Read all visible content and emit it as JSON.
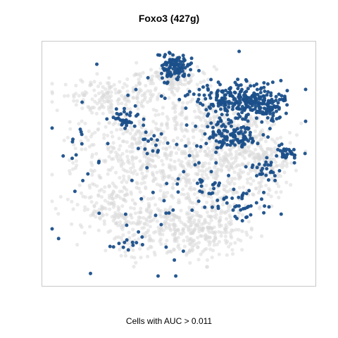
{
  "chart_data": {
    "type": "scatter",
    "title": "Foxo3 (427g)",
    "caption": "Cells with AUC > 0.011",
    "xlabel": "",
    "ylabel": "",
    "xlim": [
      0,
      100
    ],
    "ylim": [
      0,
      100
    ],
    "axes_visible": false,
    "grid": false,
    "legend": "none",
    "colors": {
      "inactive": "#d9d9d9",
      "active": "#1a4f8a",
      "active_dark": "#0e3a6b",
      "frame": "#c8c8c8"
    },
    "series": [
      {
        "name": "",
        "role": "background-cells",
        "clusters": [
          {
            "cx": 24,
            "cy": 80,
            "sx": 10,
            "sy": 4,
            "n": 170
          },
          {
            "cx": 47,
            "cy": 88,
            "sx": 7,
            "sy": 3.5,
            "n": 120
          },
          {
            "cx": 58,
            "cy": 72,
            "sx": 8,
            "sy": 5,
            "n": 110
          },
          {
            "cx": 33,
            "cy": 55,
            "sx": 13,
            "sy": 12,
            "n": 380
          },
          {
            "cx": 62,
            "cy": 45,
            "sx": 12,
            "sy": 12,
            "n": 340
          },
          {
            "cx": 74,
            "cy": 55,
            "sx": 10,
            "sy": 8,
            "n": 200
          },
          {
            "cx": 42,
            "cy": 22,
            "sx": 11,
            "sy": 7,
            "n": 240
          },
          {
            "cx": 62,
            "cy": 20,
            "sx": 9,
            "sy": 6,
            "n": 170
          },
          {
            "cx": 21,
            "cy": 30,
            "sx": 7,
            "sy": 6,
            "n": 110
          },
          {
            "cx": 86,
            "cy": 48,
            "sx": 5,
            "sy": 6,
            "n": 70
          },
          {
            "cx": 79,
            "cy": 65,
            "sx": 5,
            "sy": 5,
            "n": 60
          }
        ]
      },
      {
        "name": "",
        "role": "active-cells",
        "clusters": [
          {
            "cx": 48,
            "cy": 93,
            "sx": 3,
            "sy": 2.8,
            "n": 110
          },
          {
            "cx": 76,
            "cy": 78,
            "sx": 9,
            "sy": 4,
            "n": 260
          },
          {
            "cx": 85,
            "cy": 74,
            "sx": 3,
            "sy": 2.5,
            "n": 50
          },
          {
            "cx": 74,
            "cy": 63,
            "sx": 4,
            "sy": 3,
            "n": 70
          },
          {
            "cx": 67,
            "cy": 61,
            "sx": 3,
            "sy": 2.5,
            "n": 35
          },
          {
            "cx": 28,
            "cy": 70,
            "sx": 3,
            "sy": 2.5,
            "n": 35
          },
          {
            "cx": 93,
            "cy": 55,
            "sx": 3,
            "sy": 2,
            "n": 30
          },
          {
            "cx": 85,
            "cy": 47,
            "sx": 3,
            "sy": 3,
            "n": 25
          },
          {
            "cx": 76,
            "cy": 33,
            "sx": 5,
            "sy": 4,
            "n": 35
          },
          {
            "cx": 65,
            "cy": 40,
            "sx": 6,
            "sy": 6,
            "n": 30
          },
          {
            "cx": 30,
            "cy": 15,
            "sx": 3,
            "sy": 2,
            "n": 12
          },
          {
            "cx": 58,
            "cy": 75,
            "sx": 12,
            "sy": 12,
            "n": 30
          },
          {
            "cx": 30,
            "cy": 40,
            "sx": 16,
            "sy": 18,
            "n": 40
          },
          {
            "cx": 12,
            "cy": 63,
            "sx": 3,
            "sy": 3,
            "n": 6
          },
          {
            "cx": 42,
            "cy": 22,
            "sx": 6,
            "sy": 6,
            "n": 10
          },
          {
            "cx": 40,
            "cy": 58,
            "sx": 3,
            "sy": 3,
            "n": 8
          }
        ]
      }
    ]
  }
}
